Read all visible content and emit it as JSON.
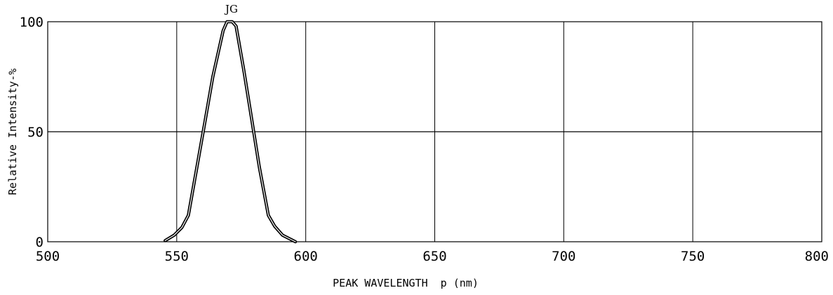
{
  "chart_data": {
    "type": "line",
    "title": "",
    "series_label": "JG",
    "xlabel": "PEAK WAVELENGTH  p (nm)",
    "ylabel": "Relative Intensity-%",
    "xlim": [
      500,
      800
    ],
    "ylim": [
      0,
      100
    ],
    "x_ticks": [
      500,
      550,
      600,
      650,
      700,
      750,
      800
    ],
    "y_ticks": [
      0,
      50,
      100
    ],
    "grid": true,
    "series": [
      {
        "values": [
          {
            "x": 545.5,
            "y": 0.5
          },
          {
            "x": 549,
            "y": 3
          },
          {
            "x": 552,
            "y": 6.5
          },
          {
            "x": 554.5,
            "y": 12
          },
          {
            "x": 558,
            "y": 35
          },
          {
            "x": 561,
            "y": 55
          },
          {
            "x": 564,
            "y": 75
          },
          {
            "x": 568,
            "y": 96
          },
          {
            "x": 569.5,
            "y": 100
          },
          {
            "x": 571.5,
            "y": 100
          },
          {
            "x": 573,
            "y": 98
          },
          {
            "x": 576,
            "y": 78
          },
          {
            "x": 579,
            "y": 56
          },
          {
            "x": 582,
            "y": 34
          },
          {
            "x": 585.5,
            "y": 12
          },
          {
            "x": 588,
            "y": 7
          },
          {
            "x": 591,
            "y": 3
          },
          {
            "x": 596,
            "y": 0
          }
        ]
      }
    ],
    "colors": {
      "line": "#000000",
      "grid": "#000000",
      "background": "#ffffff"
    }
  }
}
